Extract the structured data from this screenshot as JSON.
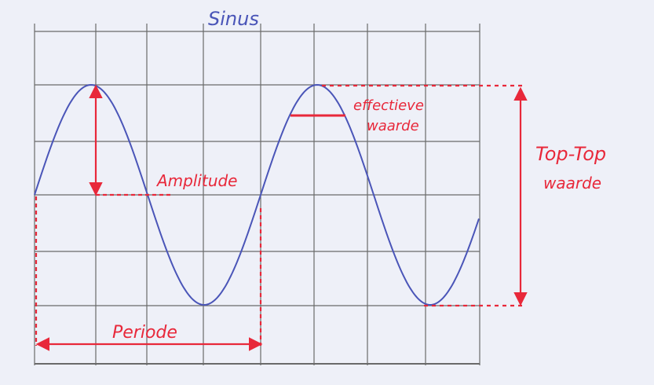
{
  "title": "Sinus",
  "labels": {
    "amplitude": "Amplitude",
    "effective_line1": "effectieve",
    "effective_line2": "waarde",
    "peak_to_peak_line1": "Top-Top",
    "peak_to_peak_line2": "waarde",
    "period": "Periode"
  },
  "colors": {
    "paper": "#eef0f8",
    "grid": "#6a6a6a",
    "wave": "#4a55b8",
    "annotation": "#e8283a"
  }
}
